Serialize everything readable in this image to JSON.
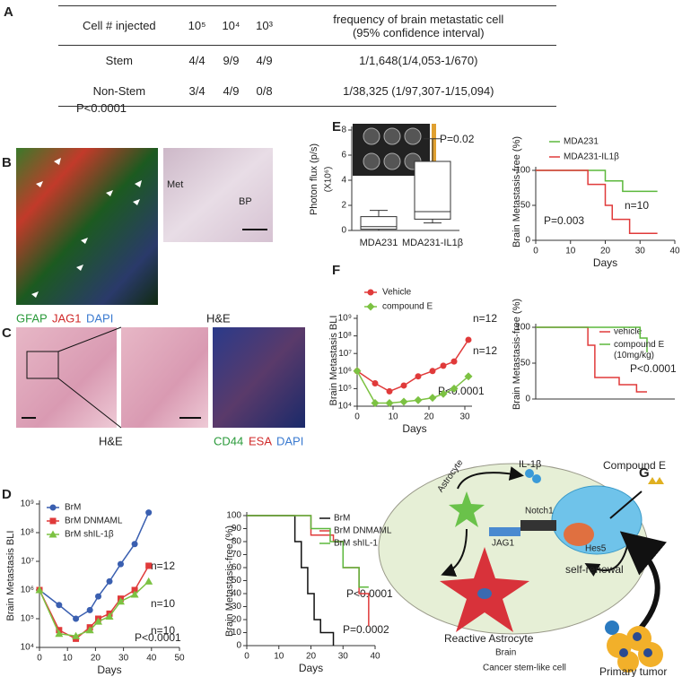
{
  "table": {
    "panel": "A",
    "header": [
      "Cell # injected",
      "10⁵",
      "10⁴",
      "10³",
      "frequency of brain metastatic cell\n(95% confidence interval)"
    ],
    "rows": [
      [
        "Stem",
        "4/4",
        "9/9",
        "4/9",
        "1/1,648(1/4,053-1/670)"
      ],
      [
        "Non-Stem",
        "3/4",
        "4/9",
        "0/8",
        "1/38,325 (1/97,307-1/15,094)"
      ]
    ],
    "note": "P<0.0001"
  },
  "panel_b": {
    "panel": "B",
    "stain_labels": [
      "GFAP",
      "JAG1",
      "DAPI"
    ],
    "region_labels": [
      "Met",
      "BP"
    ],
    "stain": "H&E"
  },
  "panel_c": {
    "panel": "C",
    "stain": "H&E",
    "stain_labels": [
      "CD44",
      "ESA",
      "DAPI"
    ]
  },
  "diagram": {
    "panel": "G",
    "labels": {
      "il1b": "IL-1β",
      "compound": "Compound E",
      "astrocyte": "Astrocyte",
      "notch": "Notch1",
      "jag": "JAG1",
      "hes": "Hes5",
      "reactive": "Reactive Astrocyte",
      "renewal": "self-renewal",
      "brain": "Brain",
      "csc": "Cancer stem-like cell",
      "tumor": "Primary tumor"
    }
  },
  "chart_data": [
    {
      "panel": "E",
      "type": "box",
      "y_label": "Photon flux (p/s)",
      "y_unit": "(X10⁶)",
      "categories": [
        "MDA231",
        "MDA231-IL1β"
      ],
      "boxes": [
        {
          "min": 0,
          "q1": 0.1,
          "median": 0.3,
          "q3": 1.1,
          "max": 1.6
        },
        {
          "min": 0.6,
          "q1": 0.9,
          "median": 1.5,
          "q3": 5.5,
          "max": 7.3
        }
      ],
      "ylim": [
        0,
        8
      ],
      "yticks": [
        0,
        2,
        4,
        6,
        8
      ],
      "annotations": [
        "P=0.02"
      ]
    },
    {
      "panel": "",
      "type": "step",
      "y_label": "Brain Metastasis-free (%)",
      "x_label": "Days",
      "series": [
        {
          "name": "MDA231",
          "color": "#5cb83c",
          "x": [
            0,
            20,
            25,
            35
          ],
          "values": [
            100,
            85,
            70,
            70
          ]
        },
        {
          "name": "MDA231-IL1β",
          "color": "#e03a3a",
          "x": [
            0,
            15,
            20,
            22,
            27,
            35
          ],
          "values": [
            100,
            80,
            50,
            30,
            10,
            10
          ]
        }
      ],
      "xlim": [
        0,
        40
      ],
      "xticks": [
        0,
        10,
        20,
        30,
        40
      ],
      "ylim": [
        0,
        100
      ],
      "yticks": [
        0,
        50,
        100
      ],
      "annotations": [
        "P=0.003",
        "n=10"
      ]
    },
    {
      "panel": "F",
      "type": "line",
      "log_y": true,
      "y_label": "Brain Metastasis BLI",
      "x_label": "Days",
      "x": [
        0,
        5,
        9,
        13,
        17,
        21,
        24,
        27,
        31
      ],
      "series": [
        {
          "name": "Vehicle",
          "color": "#e03a3a",
          "marker": "circle",
          "values": [
            1000000,
            200000,
            70000,
            150000,
            500000,
            1000000,
            2000000,
            3500000,
            60000000
          ]
        },
        {
          "name": "compound E",
          "color": "#7cc242",
          "marker": "diamond",
          "values": [
            1000000,
            15000,
            15000,
            18000,
            22000,
            30000,
            50000,
            100000,
            500000
          ]
        }
      ],
      "xlim": [
        0,
        32
      ],
      "xticks": [
        0,
        10,
        20,
        30
      ],
      "ylim": [
        10000,
        1000000000
      ],
      "yticks": [
        {
          "value": 10000,
          "label": "10⁴"
        },
        {
          "value": 100000,
          "label": "10⁵"
        },
        {
          "value": 1000000,
          "label": "10⁶"
        },
        {
          "value": 10000000,
          "label": "10⁷"
        },
        {
          "value": 100000000,
          "label": "10⁸"
        },
        {
          "value": 1000000000,
          "label": "10⁹"
        }
      ],
      "annotations": [
        "n=12",
        "n=12",
        "P<0.0001"
      ]
    },
    {
      "type": "step",
      "y_label": "Brain Metastasis-free (%)",
      "series": [
        {
          "name": "vehicle",
          "color": "#e03a3a",
          "x": [
            0,
            15,
            17,
            24,
            29,
            32
          ],
          "values": [
            100,
            75,
            30,
            20,
            10,
            10
          ]
        },
        {
          "name": "compound E\n(10mg/kg)",
          "color": "#5cb83c",
          "x": [
            0,
            30,
            32
          ],
          "values": [
            100,
            85,
            65
          ]
        }
      ],
      "xlim": [
        0,
        40
      ],
      "ylim": [
        0,
        100
      ],
      "yticks": [
        0,
        50,
        100
      ],
      "annotations": [
        "P<0.0001"
      ]
    },
    {
      "panel": "D",
      "type": "line",
      "log_y": true,
      "y_label": "Brain Metastasis BLI",
      "x_label": "Days",
      "x": [
        0,
        7,
        13,
        18,
        21,
        25,
        29,
        34,
        39
      ],
      "series": [
        {
          "name": "BrM",
          "color": "#3a5fb0",
          "marker": "circle",
          "values": [
            1000000,
            300000,
            100000,
            200000,
            600000,
            2000000,
            8000000,
            40000000,
            500000000
          ]
        },
        {
          "name": "BrM DNMAML",
          "color": "#e03a3a",
          "marker": "square",
          "values": [
            1000000,
            40000,
            20000,
            50000,
            100000,
            150000,
            500000,
            1000000,
            7000000
          ]
        },
        {
          "name": "BrM shIL-1β",
          "color": "#7cc242",
          "marker": "triangle",
          "values": [
            1000000,
            30000,
            25000,
            40000,
            80000,
            120000,
            400000,
            700000,
            2000000
          ]
        }
      ],
      "xlim": [
        0,
        50
      ],
      "xticks": [
        0,
        10,
        20,
        30,
        40,
        50
      ],
      "ylim": [
        10000,
        1000000000
      ],
      "yticks": [
        {
          "value": 10000,
          "label": "10⁴"
        },
        {
          "value": 100000,
          "label": "10⁵"
        },
        {
          "value": 1000000,
          "label": "10⁶"
        },
        {
          "value": 10000000,
          "label": "10⁷"
        },
        {
          "value": 100000000,
          "label": "10⁸"
        },
        {
          "value": 1000000000,
          "label": "10⁹"
        }
      ],
      "annotations": [
        "n=12",
        "n=10",
        "n=10",
        "P<0.0001"
      ]
    },
    {
      "type": "step",
      "y_label": "Brain Metastasis-free (%)",
      "x_label": "Days",
      "series": [
        {
          "name": "BrM",
          "color": "#111111",
          "x": [
            0,
            15,
            17,
            19,
            21,
            23,
            27
          ],
          "values": [
            100,
            80,
            60,
            40,
            20,
            10,
            0
          ]
        },
        {
          "name": "BrM DNMAML",
          "color": "#e03a3a",
          "x": [
            0,
            20,
            27,
            30,
            35,
            38
          ],
          "values": [
            100,
            85,
            80,
            60,
            40,
            15
          ]
        },
        {
          "name": "BrM shIL-1",
          "color": "#5cb83c",
          "x": [
            0,
            20,
            26,
            30,
            35,
            38
          ],
          "values": [
            100,
            90,
            80,
            60,
            45,
            45
          ]
        }
      ],
      "xlim": [
        0,
        40
      ],
      "xticks": [
        0,
        10,
        20,
        30,
        40
      ],
      "ylim": [
        0,
        100
      ],
      "yticks": [
        0,
        10,
        20,
        30,
        40,
        50,
        60,
        70,
        80,
        90,
        100
      ],
      "annotations": [
        "P<0.0001",
        "P=0.0002"
      ]
    }
  ]
}
